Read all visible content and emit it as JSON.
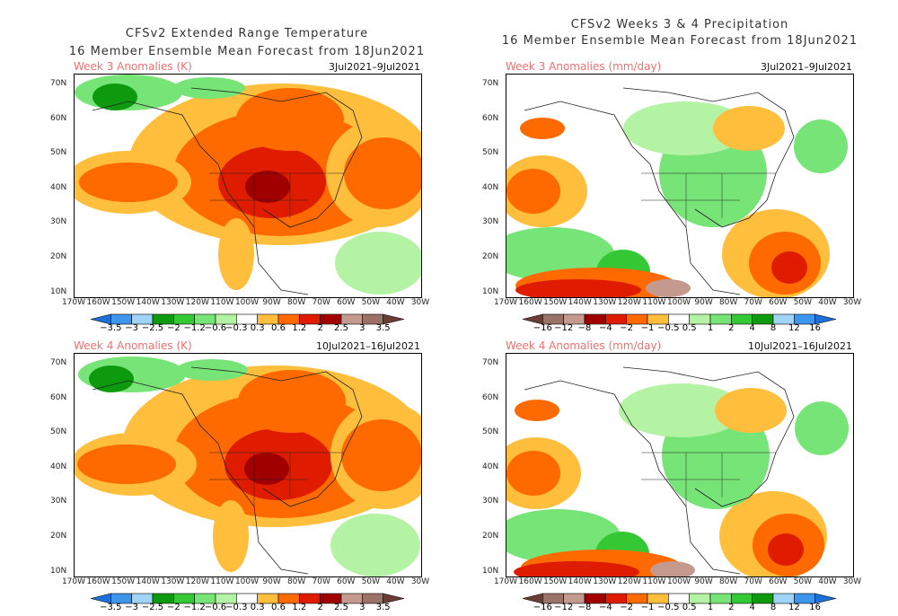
{
  "left": {
    "title1": "CFSv2 Extended Range Temperature",
    "title2": "16 Member Ensemble Mean Forecast from 18Jun2021",
    "panels": [
      {
        "label": "Week 3 Anomalies (K)",
        "dates": "3Jul2021–9Jul2021"
      },
      {
        "label": "Week 4 Anomalies (K)",
        "dates": "10Jul2021–16Jul2021"
      }
    ],
    "colorbar": {
      "labels": [
        "−3.5",
        "−3",
        "−2.5",
        "−2",
        "−1.2",
        "−0.6",
        "−0.3",
        "0.3",
        "0.6",
        "1.2",
        "2",
        "2.5",
        "3",
        "3.5"
      ],
      "colors": [
        "#1e6fd8",
        "#3d95ec",
        "#9fd3f7",
        "#0e9a0e",
        "#34c834",
        "#77e477",
        "#b4f2a4",
        "#ffffff",
        "#ffbe3c",
        "#ff6a00",
        "#e01c00",
        "#a00000",
        "#c49a8e",
        "#9a7268",
        "#6a3e34"
      ]
    }
  },
  "right": {
    "title1": "CFSv2 Weeks 3 & 4 Precipitation",
    "title2": "16 Member Ensemble Mean Forecast from 18Jun2021",
    "panels": [
      {
        "label": "Week 3 Anomalies (mm/day)",
        "dates": "3Jul2021–9Jul2021"
      },
      {
        "label": "Week 4 Anomalies (mm/day)",
        "dates": "10Jul2021–16Jul2021"
      }
    ],
    "colorbar": {
      "labels": [
        "−16",
        "−12",
        "−8",
        "−4",
        "−2",
        "−1",
        "−0.5",
        "0.5",
        "1",
        "2",
        "4",
        "8",
        "12",
        "16"
      ],
      "colors": [
        "#6a3e34",
        "#9a7268",
        "#c49a8e",
        "#a00000",
        "#e01c00",
        "#ff6a00",
        "#ffbe3c",
        "#ffffff",
        "#b4f2a4",
        "#77e477",
        "#34c834",
        "#0e9a0e",
        "#9fd3f7",
        "#3d95ec",
        "#1e6fd8"
      ]
    }
  },
  "axes": {
    "lat": [
      "70N",
      "60N",
      "50N",
      "40N",
      "30N",
      "20N",
      "10N"
    ],
    "lon": [
      "170W",
      "160W",
      "150W",
      "140W",
      "130W",
      "120W",
      "110W",
      "100W",
      "90W",
      "80W",
      "70W",
      "60W",
      "50W",
      "40W",
      "30W"
    ]
  }
}
